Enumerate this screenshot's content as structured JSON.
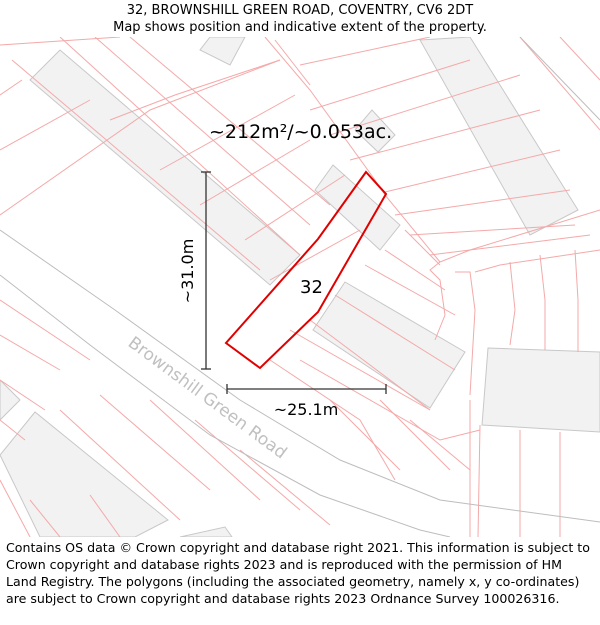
{
  "header": {
    "address": "32, BROWNSHILL GREEN ROAD, COVENTRY, CV6 2DT",
    "subtitle": "Map shows position and indicative extent of the property."
  },
  "map": {
    "area_label": "~212m²/~0.053ac.",
    "plot_number": "32",
    "street_name": "Brownshill Green Road",
    "height_dimension": "~31.0m",
    "width_dimension": "~25.1m",
    "colors": {
      "boundary": "#e00000",
      "parcel_lines": "#f4a9a9",
      "building_fill": "#f2f2f2",
      "building_stroke": "#c8c8c8",
      "road_edge": "#bdbdbd",
      "street_label": "#c0c0c0",
      "dimension": "#333333"
    }
  },
  "footer": {
    "copyright": "Contains OS data © Crown copyright and database right 2021. This information is subject to Crown copyright and database rights 2023 and is reproduced with the permission of HM Land Registry. The polygons (including the associated geometry, namely x, y co-ordinates) are subject to Crown copyright and database rights 2023 Ordnance Survey 100026316."
  }
}
